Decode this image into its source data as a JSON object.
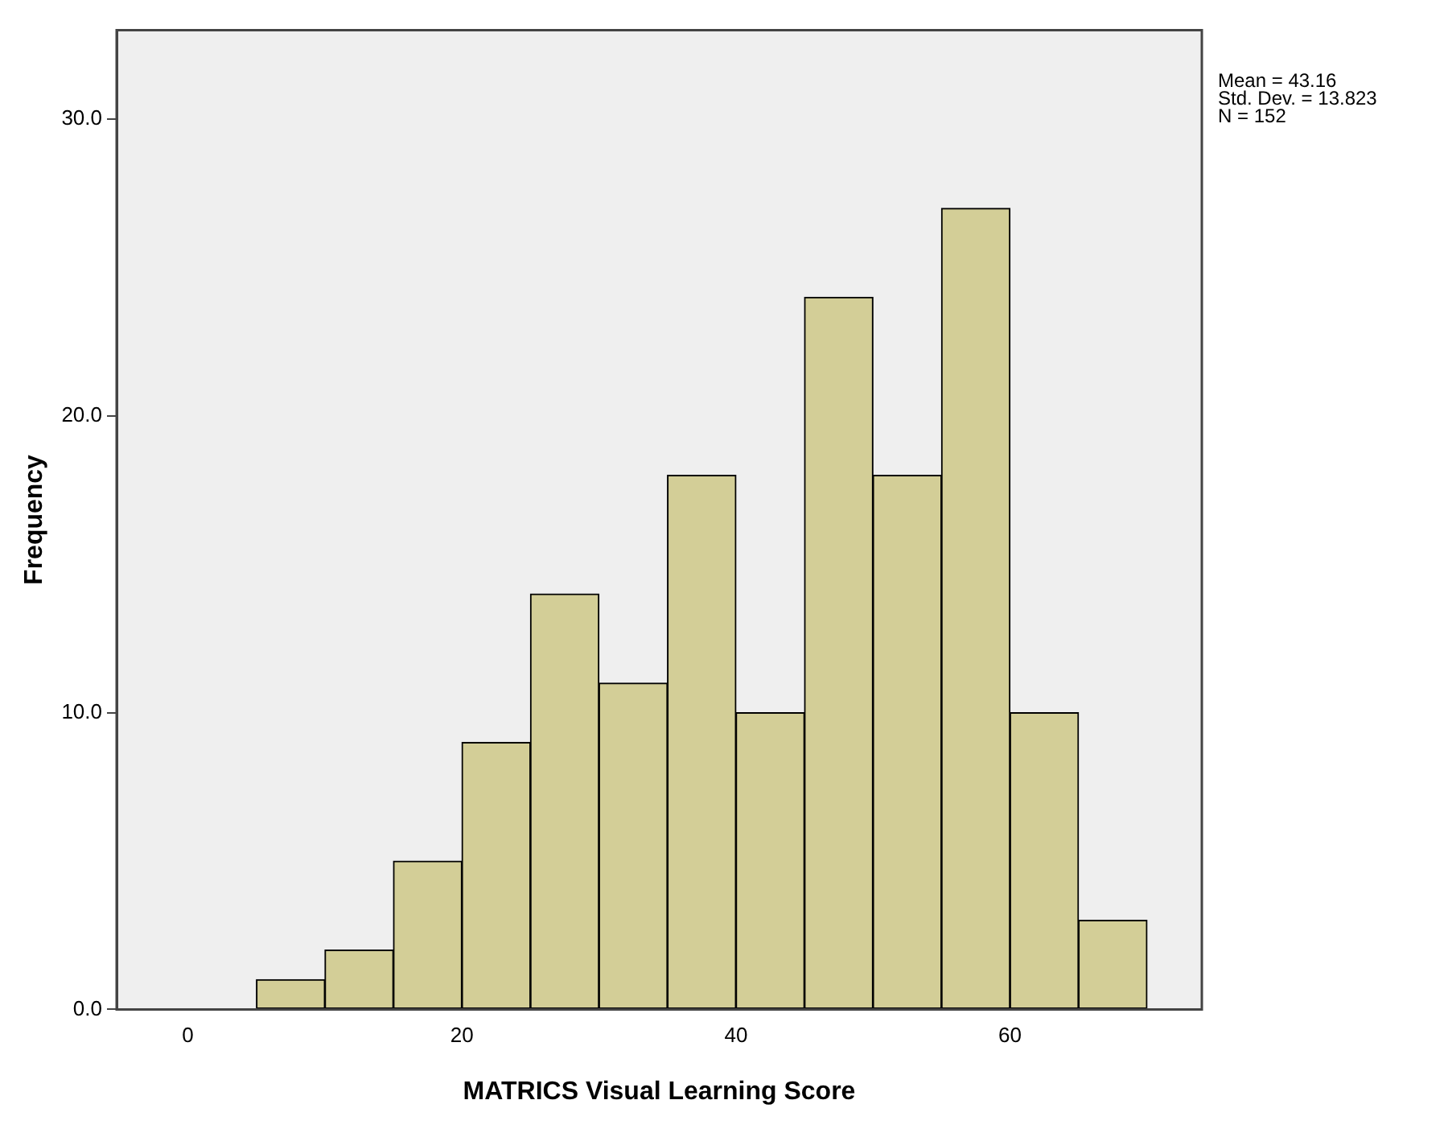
{
  "chart_data": {
    "type": "histogram",
    "xlabel": "MATRICS Visual Learning Score",
    "ylabel": "Frequency",
    "bins": [
      5,
      10,
      15,
      20,
      25,
      30,
      35,
      40,
      45,
      50,
      55,
      60,
      65,
      70
    ],
    "values": [
      1,
      2,
      5,
      9,
      14,
      11,
      18,
      10,
      24,
      18,
      27,
      10,
      3
    ],
    "color": "#d3ce97",
    "xlim": [
      -5.2,
      74
    ],
    "xticks": [
      0,
      20,
      40,
      60
    ],
    "ylim": [
      0,
      33
    ],
    "yticks": [
      {
        "value": 0,
        "label": "0.0"
      },
      {
        "value": 10,
        "label": "10.0"
      },
      {
        "value": 20,
        "label": "20.0"
      },
      {
        "value": 30,
        "label": "30.0"
      }
    ],
    "grid": false,
    "annotations": [
      "Mean = 43.16",
      "Std. Dev. = 13.823",
      "N = 152"
    ]
  }
}
